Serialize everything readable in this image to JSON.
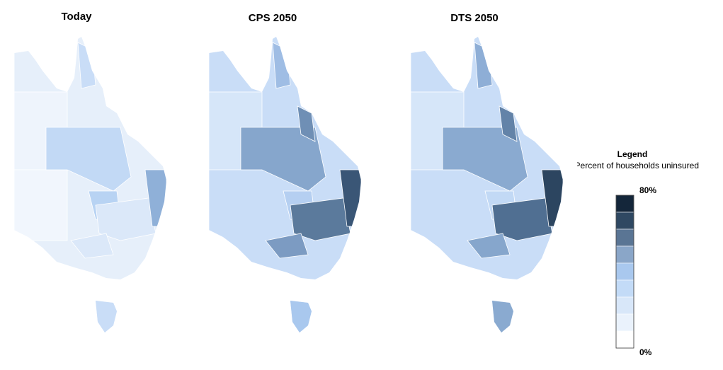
{
  "titles": [
    "Today",
    "CPS 2050",
    "DTS 2050"
  ],
  "legend": {
    "title": "Legend",
    "subtitle": "Percent of households uninsured",
    "max_label": "80%",
    "min_label": "0%",
    "colors": [
      "#14263a",
      "#2f4862",
      "#5a7594",
      "#8aa6c8",
      "#a9c8ee",
      "#c3dbf7",
      "#d8e7f9",
      "#eaf2fc",
      "#ffffff"
    ]
  }
}
